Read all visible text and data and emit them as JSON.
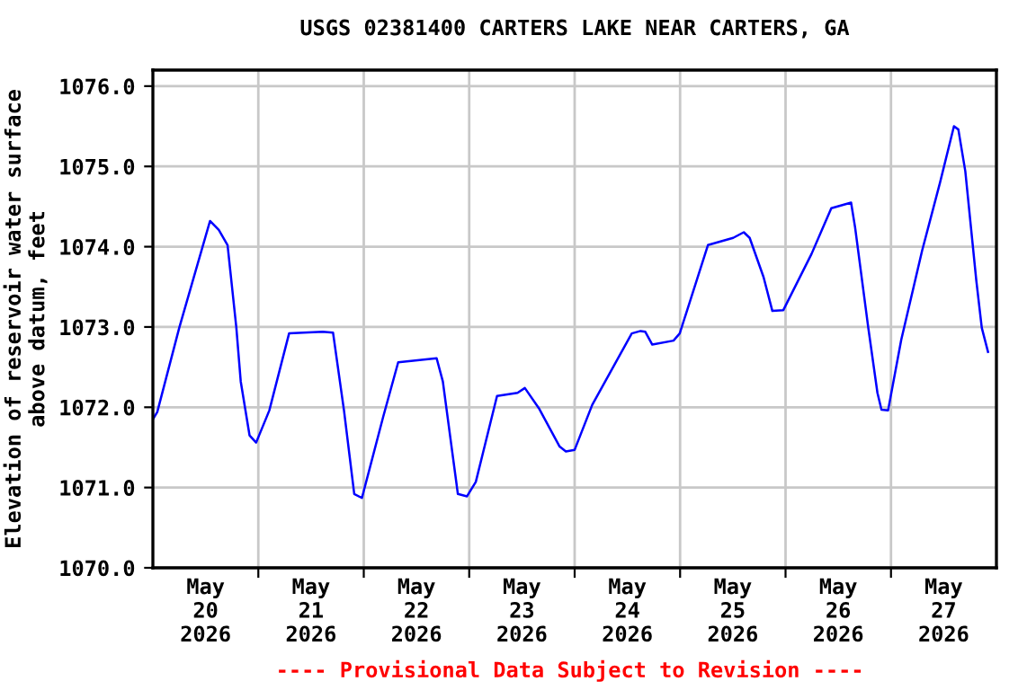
{
  "chart_data": {
    "type": "line",
    "title": "USGS 02381400 CARTERS LAKE NEAR CARTERS, GA",
    "ylabel": "Elevation of reservoir water surface\nabove datum, feet",
    "annotations": [
      "---- Provisional Data Subject to Revision ----"
    ],
    "x": [
      "2026-05-20T00:00",
      "2026-05-20T01:00",
      "2026-05-20T06:00",
      "2026-05-20T13:00",
      "2026-05-20T15:00",
      "2026-05-20T17:00",
      "2026-05-20T19:00",
      "2026-05-20T20:00",
      "2026-05-20T22:00",
      "2026-05-20T23:30",
      "2026-05-21T02:30",
      "2026-05-21T07:00",
      "2026-05-21T14:40",
      "2026-05-21T17:00",
      "2026-05-21T19:30",
      "2026-05-21T21:50",
      "2026-05-21T23:35",
      "2026-05-22T04:25",
      "2026-05-22T07:50",
      "2026-05-22T16:35",
      "2026-05-22T18:00",
      "2026-05-22T21:25",
      "2026-05-22T23:30",
      "2026-05-23T01:30",
      "2026-05-23T06:20",
      "2026-05-23T11:00",
      "2026-05-23T12:40",
      "2026-05-23T15:50",
      "2026-05-23T20:35",
      "2026-05-23T22:00",
      "2026-05-24T00:00",
      "2026-05-24T04:00",
      "2026-05-24T13:00",
      "2026-05-24T15:00",
      "2026-05-24T16:05",
      "2026-05-24T17:40",
      "2026-05-24T22:30",
      "2026-05-24T23:55",
      "2026-05-25T06:20",
      "2026-05-25T12:05",
      "2026-05-25T14:30",
      "2026-05-25T15:50",
      "2026-05-25T19:00",
      "2026-05-25T21:00",
      "2026-05-25T23:30",
      "2026-05-26T05:55",
      "2026-05-26T10:25",
      "2026-05-26T14:55",
      "2026-05-26T15:50",
      "2026-05-26T18:50",
      "2026-05-26T20:55",
      "2026-05-26T21:50",
      "2026-05-26T23:20",
      "2026-05-27T02:20",
      "2026-05-27T07:05",
      "2026-05-27T11:10",
      "2026-05-27T14:20",
      "2026-05-27T15:20",
      "2026-05-27T16:55",
      "2026-05-27T19:25",
      "2026-05-27T20:40",
      "2026-05-27T22:05"
    ],
    "series": [
      {
        "color": "#0000ff",
        "values": [
          1071.85,
          1071.94,
          1072.99,
          1074.32,
          1074.21,
          1074.02,
          1072.99,
          1072.32,
          1071.65,
          1071.56,
          1071.96,
          1072.92,
          1072.94,
          1072.93,
          1071.96,
          1070.92,
          1070.87,
          1071.88,
          1072.56,
          1072.61,
          1072.32,
          1070.92,
          1070.89,
          1071.07,
          1072.14,
          1072.18,
          1072.24,
          1071.99,
          1071.51,
          1071.45,
          1071.47,
          1072.03,
          1072.92,
          1072.95,
          1072.94,
          1072.78,
          1072.83,
          1072.92,
          1074.02,
          1074.11,
          1074.18,
          1074.11,
          1073.62,
          1073.2,
          1073.21,
          1073.91,
          1074.48,
          1074.55,
          1074.24,
          1072.99,
          1072.18,
          1071.97,
          1071.96,
          1072.84,
          1073.95,
          1074.8,
          1075.5,
          1075.46,
          1074.94,
          1073.58,
          1072.99,
          1072.69
        ]
      }
    ],
    "xlim": [
      "2026-05-20T00:00",
      "2026-05-28T00:00"
    ],
    "xticks": [
      {
        "value": "2026-05-21T00:00",
        "label": null
      },
      {
        "value": "2026-05-22T00:00",
        "label": null
      },
      {
        "value": "2026-05-23T00:00",
        "label": null
      },
      {
        "value": "2026-05-24T00:00",
        "label": null
      },
      {
        "value": "2026-05-25T00:00",
        "label": null
      },
      {
        "value": "2026-05-26T00:00",
        "label": null
      },
      {
        "value": "2026-05-27T00:00",
        "label": null
      },
      {
        "value": "2026-05-20T12:00",
        "label": "May\n20\n2026"
      },
      {
        "value": "2026-05-21T12:00",
        "label": "May\n21\n2026"
      },
      {
        "value": "2026-05-22T12:00",
        "label": "May\n22\n2026"
      },
      {
        "value": "2026-05-23T12:00",
        "label": "May\n23\n2026"
      },
      {
        "value": "2026-05-24T12:00",
        "label": "May\n24\n2026"
      },
      {
        "value": "2026-05-25T12:00",
        "label": "May\n25\n2026"
      },
      {
        "value": "2026-05-26T12:00",
        "label": "May\n26\n2026"
      },
      {
        "value": "2026-05-27T12:00",
        "label": "May\n27\n2026"
      }
    ],
    "ylim": [
      1070,
      1076.2
    ],
    "yticks": [
      {
        "value": 1070,
        "label": "1070.0"
      },
      {
        "value": 1071,
        "label": "1071.0"
      },
      {
        "value": 1072,
        "label": "1072.0"
      },
      {
        "value": 1073,
        "label": "1073.0"
      },
      {
        "value": 1074,
        "label": "1074.0"
      },
      {
        "value": 1075,
        "label": "1075.0"
      },
      {
        "value": 1076,
        "label": "1076.0"
      }
    ],
    "grid": true
  }
}
